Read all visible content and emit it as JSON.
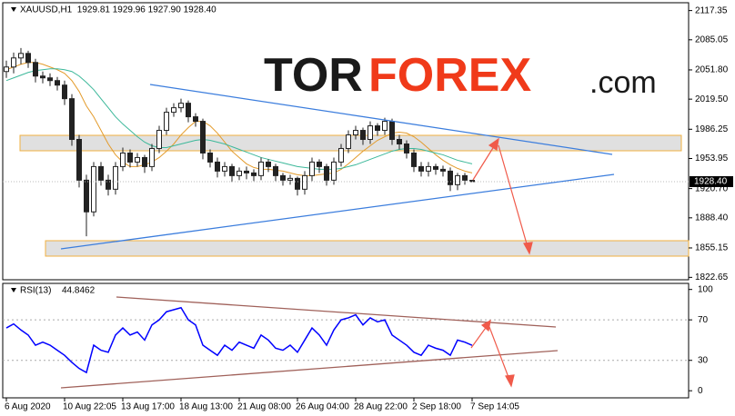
{
  "chart_data": {
    "type": "candlestick",
    "header": "XAUUSD,H1  1929.81 1929.96 1927.90 1928.40",
    "watermark": [
      "TOR",
      "FOREX",
      ".com"
    ],
    "categories": [
      "6 Aug 2020",
      null,
      null,
      null,
      null,
      null,
      null,
      null,
      "10 Aug 22:05",
      null,
      null,
      null,
      null,
      null,
      null,
      null,
      "13 Aug 17:00",
      null,
      null,
      null,
      null,
      null,
      null,
      null,
      "18 Aug 13:00",
      null,
      null,
      null,
      null,
      null,
      null,
      null,
      "21 Aug 08:00",
      null,
      null,
      null,
      null,
      null,
      null,
      null,
      "26 Aug 04:00",
      null,
      null,
      null,
      null,
      null,
      null,
      null,
      "28 Aug 22:00",
      null,
      null,
      null,
      null,
      null,
      null,
      null,
      "2 Sep 18:00",
      null,
      null,
      null,
      null,
      null,
      null,
      null,
      "7 Sep 14:05"
    ],
    "open": [
      2050,
      2055,
      2065,
      2070,
      2060,
      2045,
      2043,
      2040,
      2035,
      2020,
      1975,
      1930,
      1895,
      1945,
      1930,
      1920,
      1945,
      1960,
      1950,
      1955,
      1945,
      1965,
      1985,
      2005,
      2010,
      2015,
      2000,
      1995,
      1960,
      1950,
      1940,
      1945,
      1935,
      1940,
      1938,
      1935,
      1950,
      1945,
      1935,
      1930,
      1932,
      1920,
      1935,
      1950,
      1945,
      1930,
      1950,
      1965,
      1980,
      1985,
      1975,
      1990,
      1985,
      1995,
      1975,
      1970,
      1960,
      1945,
      1940,
      1945,
      1942,
      1940,
      1925,
      1935,
      1929.81
    ],
    "high": [
      2062,
      2071,
      2076,
      2073,
      2064,
      2050,
      2048,
      2044,
      2040,
      2025,
      1980,
      1936,
      1950,
      1950,
      1936,
      1950,
      1966,
      1964,
      1960,
      1958,
      1970,
      1990,
      2010,
      2015,
      2020,
      2018,
      2004,
      1998,
      1964,
      1955,
      1950,
      1948,
      1944,
      1945,
      1942,
      1955,
      1953,
      1948,
      1938,
      1936,
      1934,
      1940,
      1955,
      1953,
      1948,
      1955,
      1970,
      1985,
      1990,
      1988,
      1995,
      1993,
      1999,
      1998,
      1980,
      1974,
      1964,
      1950,
      1950,
      1948,
      1946,
      1944,
      1938,
      1938,
      1929.96
    ],
    "low": [
      2043,
      2048,
      2058,
      2054,
      2038,
      2037,
      2034,
      2029,
      2013,
      1968,
      1922,
      1868,
      1890,
      1924,
      1913,
      1914,
      1940,
      1944,
      1945,
      1938,
      1940,
      1960,
      1980,
      2000,
      2005,
      1994,
      1989,
      1953,
      1944,
      1933,
      1934,
      1928,
      1930,
      1931,
      1929,
      1930,
      1939,
      1929,
      1924,
      1925,
      1913,
      1914,
      1929,
      1938,
      1924,
      1925,
      1945,
      1960,
      1975,
      1969,
      1970,
      1979,
      1980,
      1969,
      1964,
      1954,
      1939,
      1934,
      1934,
      1936,
      1934,
      1918,
      1919,
      1925,
      1927.9
    ],
    "close": [
      2055,
      2065,
      2070,
      2060,
      2045,
      2043,
      2040,
      2035,
      2020,
      1975,
      1930,
      1895,
      1945,
      1930,
      1920,
      1945,
      1960,
      1950,
      1955,
      1945,
      1965,
      1985,
      2005,
      2010,
      2015,
      2000,
      1995,
      1960,
      1950,
      1940,
      1945,
      1935,
      1940,
      1938,
      1935,
      1950,
      1945,
      1935,
      1930,
      1932,
      1920,
      1935,
      1950,
      1945,
      1930,
      1950,
      1965,
      1980,
      1985,
      1975,
      1990,
      1985,
      1995,
      1975,
      1970,
      1960,
      1945,
      1940,
      1945,
      1942,
      1940,
      1925,
      1935,
      1930,
      1928.4
    ],
    "color": "#222222",
    "series": [
      {
        "color": "#e39b2b",
        "values": [
          2052,
          2055,
          2058,
          2060,
          2060,
          2058,
          2055,
          2052,
          2048,
          2040,
          2028,
          2012,
          2000,
          1985,
          1970,
          1958,
          1950,
          1945,
          1945,
          1947,
          1950,
          1955,
          1962,
          1970,
          1980,
          1988,
          1995,
          1995,
          1990,
          1982,
          1972,
          1962,
          1955,
          1948,
          1944,
          1942,
          1942,
          1941,
          1940,
          1938,
          1936,
          1935,
          1935,
          1936,
          1937,
          1938,
          1942,
          1948,
          1955,
          1962,
          1968,
          1974,
          1978,
          1982,
          1983,
          1982,
          1978,
          1972,
          1965,
          1958,
          1952,
          1947,
          1943,
          1940,
          1938
        ]
      },
      {
        "color": "#3cb89a",
        "values": [
          2040,
          2043,
          2046,
          2049,
          2051,
          2052,
          2053,
          2053,
          2052,
          2050,
          2045,
          2038,
          2030,
          2020,
          2010,
          2000,
          1992,
          1985,
          1978,
          1972,
          1968,
          1966,
          1966,
          1968,
          1970,
          1972,
          1974,
          1975,
          1974,
          1972,
          1970,
          1967,
          1964,
          1961,
          1958,
          1955,
          1953,
          1951,
          1949,
          1947,
          1945,
          1944,
          1943,
          1942,
          1942,
          1942,
          1943,
          1945,
          1947,
          1950,
          1953,
          1956,
          1959,
          1962,
          1964,
          1965,
          1965,
          1964,
          1962,
          1960,
          1958,
          1955,
          1952,
          1950,
          1948
        ]
      }
    ],
    "ylim": [
      1820,
      2126
    ],
    "yticks": [
      2117.35,
      2085.05,
      {
        "value": 2051.8,
        "label": "2051.80"
      },
      {
        "value": 2019.5,
        "label": "2019.50"
      },
      1986.25,
      1953.95,
      {
        "value": 1920.7,
        "label": "1920.70"
      },
      {
        "value": 1888.4,
        "label": "1888.40"
      },
      1855.15,
      1822.65
    ],
    "last_price": {
      "value": 1928.4,
      "label": "1928.40"
    },
    "rsi": {
      "name": "RSI(13)",
      "color": "#0000ff",
      "values": [
        62,
        66,
        60,
        55,
        45,
        48,
        45,
        40,
        35,
        28,
        22,
        18,
        45,
        40,
        38,
        55,
        62,
        55,
        58,
        50,
        65,
        70,
        78,
        80,
        82,
        70,
        65,
        45,
        40,
        35,
        45,
        40,
        48,
        45,
        42,
        55,
        50,
        42,
        40,
        45,
        38,
        50,
        62,
        55,
        45,
        60,
        70,
        72,
        75,
        65,
        72,
        68,
        70,
        55,
        50,
        45,
        38,
        35,
        45,
        42,
        40,
        35,
        50,
        48,
        44.8462
      ],
      "ylim": [
        -7,
        106
      ],
      "yticks": [
        0,
        30,
        70,
        100
      ]
    }
  }
}
